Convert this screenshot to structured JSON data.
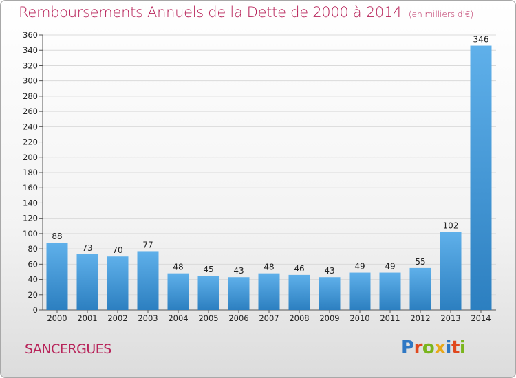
{
  "title": "Remboursements Annuels de la Dette de 2000 à 2014",
  "unit": "(en milliers d'€)",
  "commune": "SANCERGUES",
  "logo": {
    "text": "Proxiti",
    "colors": [
      "#2f78c4",
      "#e0481e",
      "#7ab51d",
      "#e8a91b",
      "#2f78c4",
      "#e0481e",
      "#7ab51d"
    ]
  },
  "chart_data": {
    "type": "bar",
    "categories": [
      "2000",
      "2001",
      "2002",
      "2003",
      "2004",
      "2005",
      "2006",
      "2007",
      "2008",
      "2009",
      "2010",
      "2011",
      "2012",
      "2013",
      "2014"
    ],
    "values": [
      88,
      73,
      70,
      77,
      48,
      45,
      43,
      48,
      46,
      43,
      49,
      49,
      55,
      102,
      346
    ],
    "data_labels": [
      "88",
      "73",
      "70",
      "77",
      "48",
      "45",
      "43",
      "48",
      "46",
      "43",
      "49",
      "49",
      "55",
      "102",
      "346"
    ],
    "y_ticks": [
      0,
      20,
      40,
      60,
      80,
      100,
      120,
      140,
      160,
      180,
      200,
      220,
      240,
      260,
      280,
      300,
      320,
      340,
      360
    ],
    "ylim": [
      0,
      360
    ],
    "grid": true,
    "bar_color_light": "#5fb0ea",
    "bar_color_dark": "#2c7fc0"
  }
}
